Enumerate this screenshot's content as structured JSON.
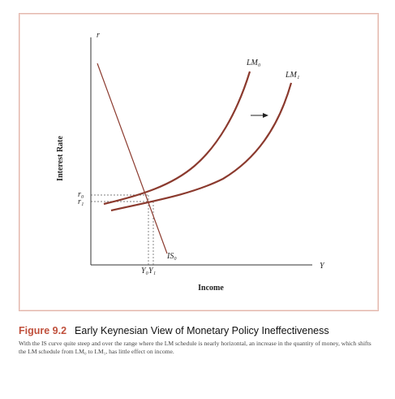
{
  "diagram": {
    "y_axis_symbol": "r",
    "x_axis_symbol": "Y",
    "y_axis_title": "Interest Rate",
    "x_axis_title": "Income",
    "curves": {
      "lm0": "LM₀",
      "lm1": "LM₁",
      "is0": "IS₀"
    },
    "ticks": {
      "r0": "r₀",
      "r1": "r₁",
      "y0y1": "Y₀Y₁"
    },
    "colors": {
      "curve": "#8b3a2e",
      "axis": "#333333",
      "frame": "#e3b7ad",
      "figure_label": "#c0503c"
    }
  },
  "caption": {
    "label": "Figure 9.2",
    "title": "Early Keynesian View of Monetary Policy Ineffectiveness",
    "body": "With the IS curve quite steep and over the range where the LM schedule is nearly horizontal, an increase in the quantity of money, which shifts the LM schedule from LM₀ to LM₁, has little effect on income."
  }
}
